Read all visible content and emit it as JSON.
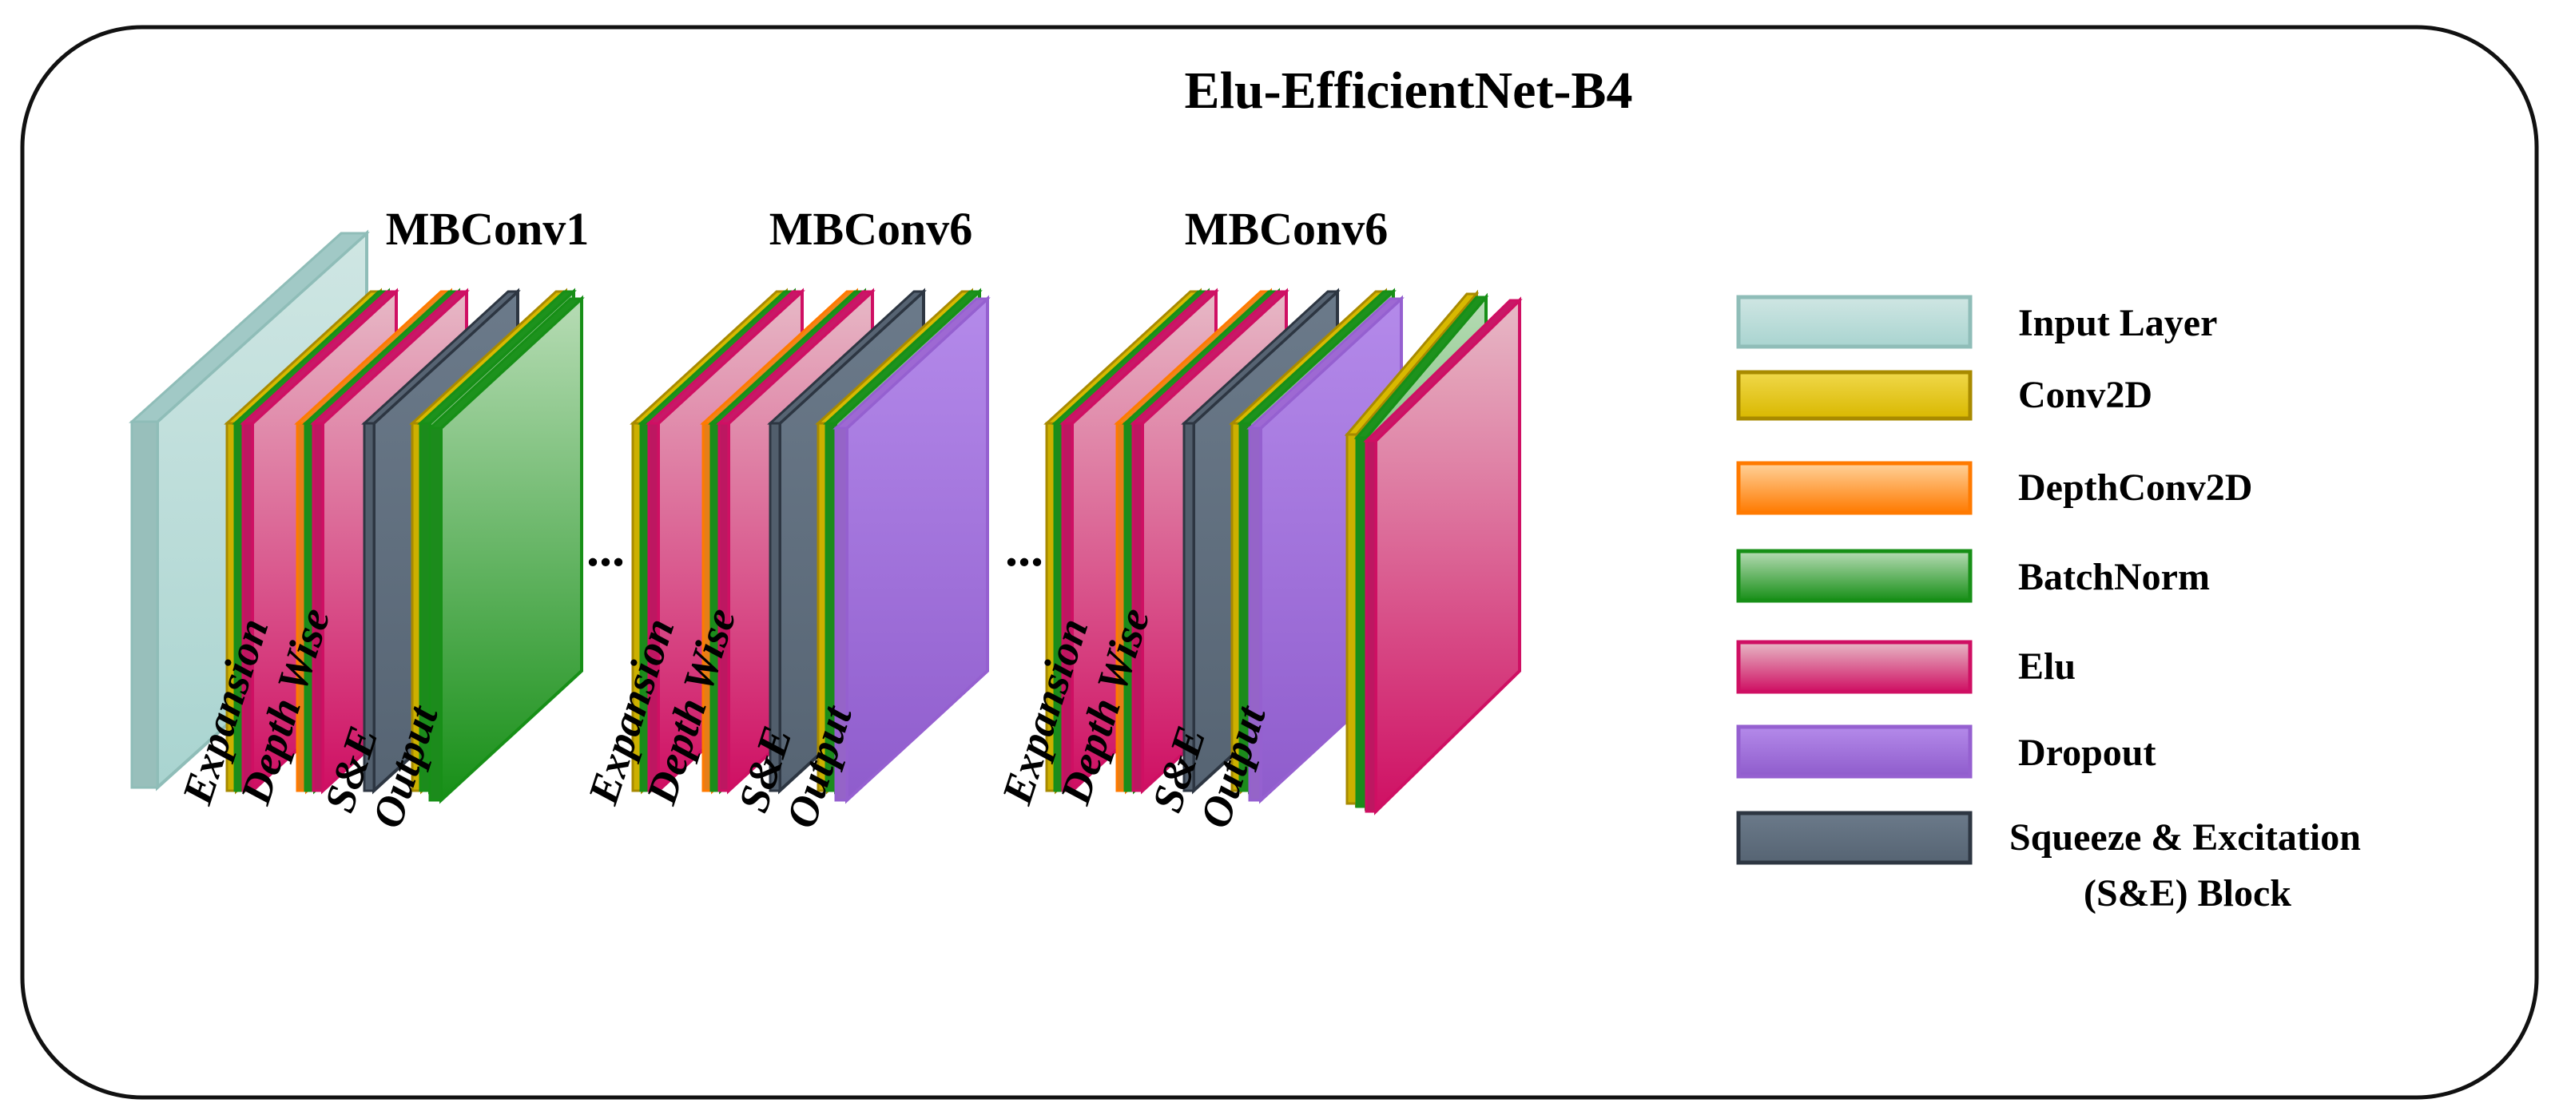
{
  "title": "Elu-EfficientNet-B4",
  "colors": {
    "input": "#a9d4d0",
    "conv2d": "#e3c300",
    "depthconv": "#ff8c1a",
    "batchnorm": "#1f9a1f",
    "elu": "#d2196c",
    "dropout": "#a66fde",
    "se": "#5a6878"
  },
  "blocks": [
    {
      "name": "MBConv1",
      "stage_labels": [
        "Expansion",
        "Depth Wise",
        "S&E",
        "Output"
      ]
    },
    {
      "name": "MBConv6",
      "stage_labels": [
        "Expansion",
        "Depth Wise",
        "S&E",
        "Output"
      ]
    },
    {
      "name": "MBConv6",
      "stage_labels": [
        "Expansion",
        "Depth Wise",
        "S&E",
        "Output"
      ]
    }
  ],
  "ellipsis": [
    "...",
    "..."
  ],
  "legend": [
    {
      "label": "Input Layer",
      "key": "input"
    },
    {
      "label": "Conv2D",
      "key": "conv2d"
    },
    {
      "label": "DepthConv2D",
      "key": "depthconv"
    },
    {
      "label": "BatchNorm",
      "key": "batchnorm"
    },
    {
      "label": "Elu",
      "key": "elu"
    },
    {
      "label": "Dropout",
      "key": "dropout"
    },
    {
      "label": "Squeeze & Excitation",
      "label2": "(S&E) Block",
      "key": "se"
    }
  ]
}
